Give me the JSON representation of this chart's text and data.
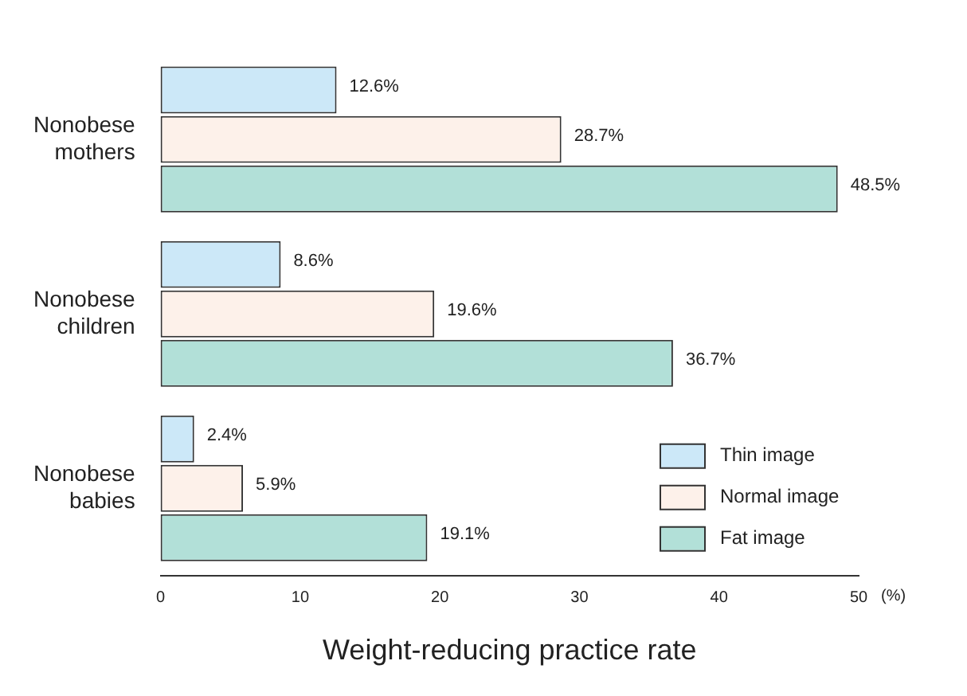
{
  "chart_data": {
    "type": "bar",
    "orientation": "horizontal",
    "xlabel": "Weight-reducing practice rate",
    "categories": [
      "Nonobese mothers",
      "Nonobese children",
      "Nonobese babies"
    ],
    "series": [
      {
        "name": "Thin image",
        "color": "#cce8f8",
        "values": [
          12.6,
          8.6,
          2.4
        ],
        "value_labels": [
          "12.6%",
          "8.6%",
          "2.4%"
        ]
      },
      {
        "name": "Normal image",
        "color": "#fdf1ea",
        "values": [
          28.7,
          19.6,
          5.9
        ],
        "value_labels": [
          "28.7%",
          "19.6%",
          "5.9%"
        ]
      },
      {
        "name": "Fat image",
        "color": "#b2e0d8",
        "values": [
          48.5,
          36.7,
          19.1
        ],
        "value_labels": [
          "48.5%",
          "36.7%",
          "19.1%"
        ]
      }
    ],
    "xlim": [
      0,
      50
    ],
    "xticks": [
      0,
      10,
      20,
      30,
      40,
      50
    ],
    "grid": false,
    "legend": "bottom right",
    "annotations": [
      "(%)"
    ]
  }
}
